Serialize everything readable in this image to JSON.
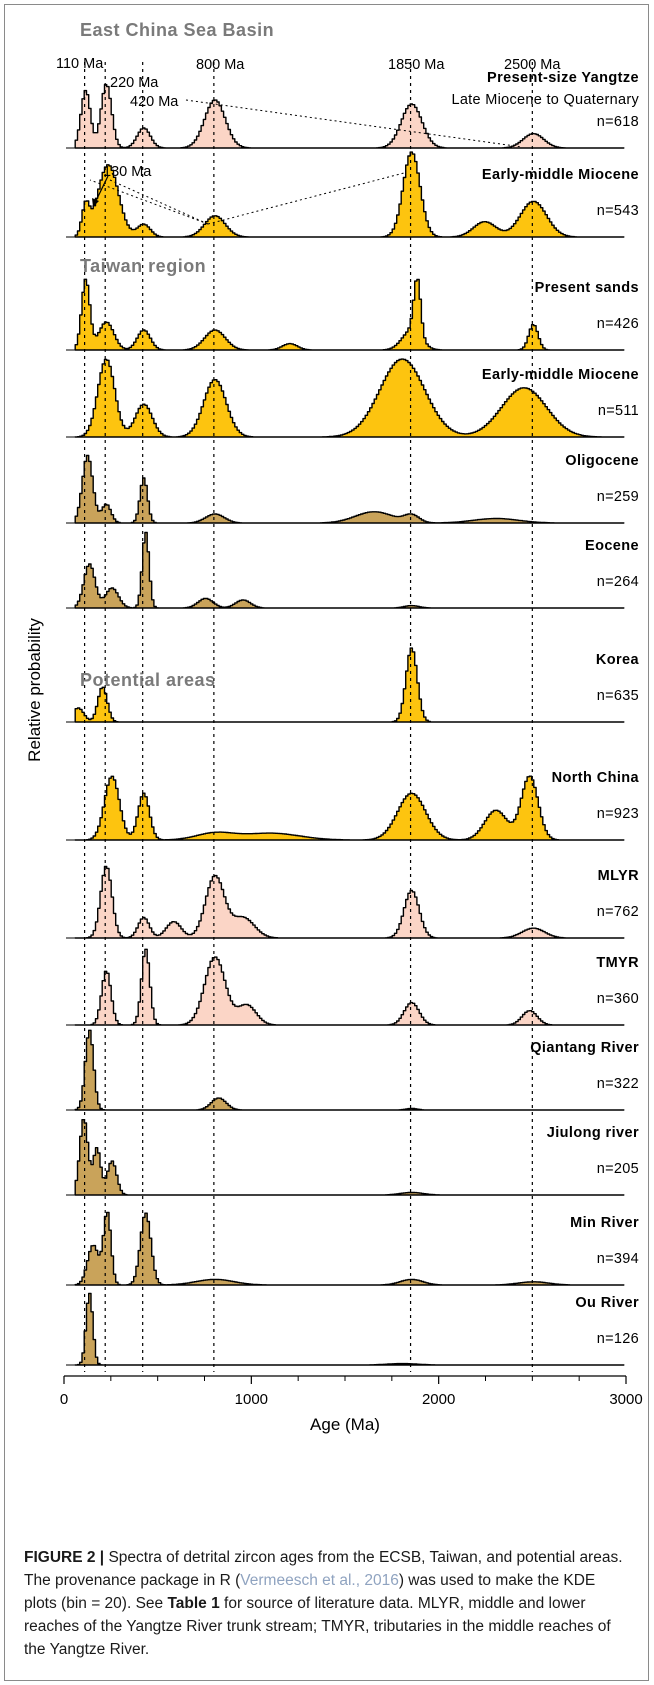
{
  "chart_data": {
    "type": "area",
    "xlabel": "Age (Ma)",
    "ylabel": "Relative probability",
    "xlim": [
      0,
      3000
    ],
    "xticks": [
      0,
      1000,
      2000,
      3000
    ],
    "reference_lines": [
      110,
      220,
      420,
      800,
      1850,
      2500
    ],
    "sections": [
      {
        "key": "ecs",
        "label": "East China Sea Basin"
      },
      {
        "key": "tw",
        "label": "Taiwan region"
      },
      {
        "key": "pa",
        "label": "Potential areas"
      }
    ],
    "peak_annotations": [
      "110 Ma",
      "220 Ma",
      "420 Ma",
      "800 Ma",
      "1850 Ma",
      "2500 Ma",
      "130 Ma"
    ],
    "panels": [
      {
        "label": "Present-size  Yangtze",
        "sublabel": "Late Miocene to Quaternary",
        "n": "n=618",
        "color": "#fbd5c6",
        "peaks": [
          [
            110,
            0.72,
            25
          ],
          [
            220,
            0.8,
            28
          ],
          [
            420,
            0.25,
            35
          ],
          [
            800,
            0.6,
            55
          ],
          [
            1850,
            0.55,
            55
          ],
          [
            2500,
            0.18,
            55
          ]
        ]
      },
      {
        "label": "Early-middle Miocene",
        "sublabel": "",
        "n": "n=543",
        "color": "#fdc40f",
        "peaks": [
          [
            110,
            0.35,
            20
          ],
          [
            230,
            0.85,
            55
          ],
          [
            420,
            0.15,
            35
          ],
          [
            800,
            0.25,
            55
          ],
          [
            1850,
            1.0,
            45
          ],
          [
            2240,
            0.18,
            60
          ],
          [
            2500,
            0.42,
            70
          ]
        ]
      },
      {
        "label": "Present sands",
        "sublabel": "",
        "n": "n=426",
        "color": "#fdc40f",
        "peaks": [
          [
            110,
            0.88,
            22
          ],
          [
            220,
            0.35,
            40
          ],
          [
            420,
            0.25,
            35
          ],
          [
            800,
            0.25,
            55
          ],
          [
            1200,
            0.08,
            40
          ],
          [
            1850,
            0.25,
            50
          ],
          [
            1880,
            0.7,
            18
          ],
          [
            2500,
            0.32,
            25
          ]
        ]
      },
      {
        "label": "Early-middle Miocene",
        "sublabel": "",
        "n": "n=511",
        "color": "#fdc40f",
        "peaks": [
          [
            220,
            0.95,
            45
          ],
          [
            420,
            0.4,
            45
          ],
          [
            800,
            0.7,
            60
          ],
          [
            1800,
            0.95,
            120
          ],
          [
            2450,
            0.6,
            120
          ]
        ]
      },
      {
        "label": "Oligocene",
        "sublabel": "",
        "n": "n=259",
        "color": "#c9a35a",
        "peaks": [
          [
            120,
            0.9,
            28
          ],
          [
            220,
            0.25,
            25
          ],
          [
            420,
            0.6,
            20
          ],
          [
            800,
            0.12,
            50
          ],
          [
            1650,
            0.15,
            100
          ],
          [
            1850,
            0.1,
            40
          ],
          [
            2300,
            0.06,
            120
          ]
        ]
      },
      {
        "label": "Eocene",
        "sublabel": "",
        "n": "n=264",
        "color": "#c9a35a",
        "peaks": [
          [
            130,
            0.55,
            30
          ],
          [
            250,
            0.25,
            35
          ],
          [
            430,
            0.95,
            18
          ],
          [
            750,
            0.12,
            40
          ],
          [
            950,
            0.1,
            40
          ],
          [
            1850,
            0.03,
            40
          ]
        ]
      },
      {
        "label": "Korea",
        "sublabel": "",
        "n": "n=635",
        "color": "#fdc40f",
        "peaks": [
          [
            70,
            0.18,
            30
          ],
          [
            200,
            0.45,
            25
          ],
          [
            1850,
            0.95,
            30
          ]
        ]
      },
      {
        "label": "North China",
        "sublabel": "",
        "n": "n=923",
        "color": "#fdc40f",
        "peaks": [
          [
            250,
            0.75,
            40
          ],
          [
            420,
            0.55,
            30
          ],
          [
            800,
            0.08,
            100
          ],
          [
            1100,
            0.08,
            150
          ],
          [
            1850,
            0.55,
            75
          ],
          [
            2300,
            0.35,
            60
          ],
          [
            2480,
            0.75,
            45
          ]
        ]
      },
      {
        "label": "MLYR",
        "sublabel": "",
        "n": "n=762",
        "color": "#fbd5c6",
        "peaks": [
          [
            220,
            0.88,
            30
          ],
          [
            420,
            0.25,
            30
          ],
          [
            580,
            0.2,
            40
          ],
          [
            800,
            0.75,
            50
          ],
          [
            950,
            0.25,
            60
          ],
          [
            1850,
            0.58,
            40
          ],
          [
            2500,
            0.12,
            60
          ]
        ]
      },
      {
        "label": "TMYR",
        "sublabel": "",
        "n": "n=360",
        "color": "#fbd5c6",
        "peaks": [
          [
            220,
            0.68,
            25
          ],
          [
            430,
            0.95,
            22
          ],
          [
            800,
            0.85,
            55
          ],
          [
            970,
            0.25,
            50
          ],
          [
            1850,
            0.28,
            40
          ],
          [
            2480,
            0.18,
            40
          ]
        ]
      },
      {
        "label": "Qiantang River",
        "sublabel": "",
        "n": "n=322",
        "color": "#c9a35a",
        "peaks": [
          [
            130,
            1.0,
            22
          ],
          [
            820,
            0.15,
            40
          ],
          [
            1850,
            0.02,
            30
          ]
        ]
      },
      {
        "label": "Jiulong river",
        "sublabel": "",
        "n": "n=205",
        "color": "#c9a35a",
        "peaks": [
          [
            100,
            0.9,
            22
          ],
          [
            170,
            0.55,
            20
          ],
          [
            250,
            0.4,
            25
          ],
          [
            1850,
            0.03,
            60
          ]
        ]
      },
      {
        "label": "Min River",
        "sublabel": "",
        "n": "n=394",
        "color": "#c9a35a",
        "peaks": [
          [
            150,
            0.5,
            30
          ],
          [
            225,
            0.9,
            20
          ],
          [
            430,
            0.9,
            28
          ],
          [
            800,
            0.07,
            100
          ],
          [
            1850,
            0.07,
            60
          ],
          [
            2500,
            0.04,
            80
          ]
        ]
      },
      {
        "label": "Ou River",
        "sublabel": "",
        "n": "n=126",
        "color": "#c9a35a",
        "peaks": [
          [
            130,
            1.0,
            18
          ],
          [
            1800,
            0.02,
            80
          ]
        ]
      }
    ]
  },
  "caption": {
    "figure_label": "FIGURE 2 |",
    "text_1": " Spectra of detrital zircon ages from the ECSB, Taiwan, and potential areas. The provenance package in R (",
    "reference": "Vermeesch et al., 2016",
    "text_2": ") was used to make the KDE plots (bin = 20). See ",
    "table_ref": "Table 1",
    "text_3": " for source of literature data. MLYR, middle and lower reaches of the Yangtze River trunk stream; TMYR, tributaries in the middle reaches of the Yangtze River."
  }
}
